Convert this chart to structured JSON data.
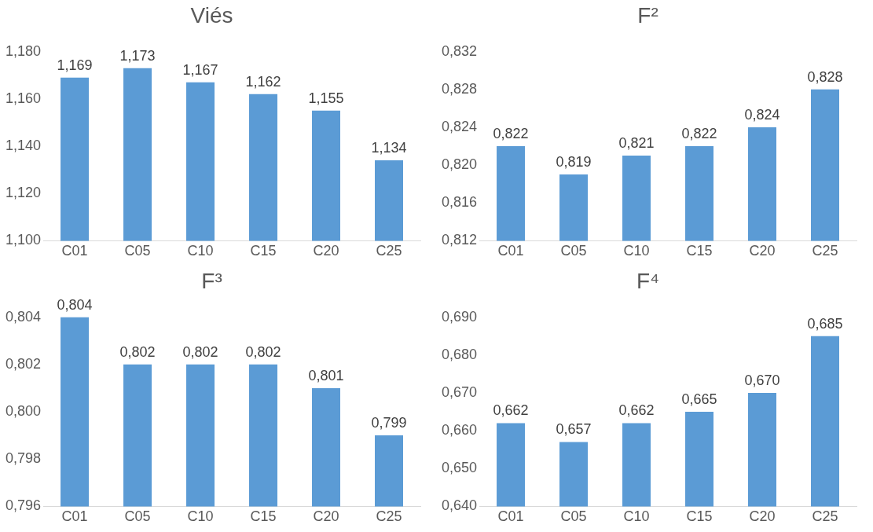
{
  "chart_data": [
    {
      "type": "bar",
      "title": "Viés",
      "categories": [
        "C01",
        "C05",
        "C10",
        "C15",
        "C20",
        "C25"
      ],
      "values": [
        1.169,
        1.173,
        1.167,
        1.162,
        1.155,
        1.134
      ],
      "color": "#5b9bd5",
      "value_labels": [
        "1,169",
        "1,173",
        "1,167",
        "1,162",
        "1,155",
        "1,134"
      ],
      "ylim": [
        1.1,
        1.18
      ],
      "yticks": [
        {
          "value": 1.1,
          "label": "1,100"
        },
        {
          "value": 1.12,
          "label": "1,120"
        },
        {
          "value": 1.14,
          "label": "1,140"
        },
        {
          "value": 1.16,
          "label": "1,160"
        },
        {
          "value": 1.18,
          "label": "1,180"
        }
      ],
      "grid": false
    },
    {
      "type": "bar",
      "title": "F²",
      "categories": [
        "C01",
        "C05",
        "C10",
        "C15",
        "C20",
        "C25"
      ],
      "values": [
        0.822,
        0.819,
        0.821,
        0.822,
        0.824,
        0.828
      ],
      "color": "#5b9bd5",
      "value_labels": [
        "0,822",
        "0,819",
        "0,821",
        "0,822",
        "0,824",
        "0,828"
      ],
      "ylim": [
        0.812,
        0.832
      ],
      "yticks": [
        {
          "value": 0.812,
          "label": "0,812"
        },
        {
          "value": 0.816,
          "label": "0,816"
        },
        {
          "value": 0.82,
          "label": "0,820"
        },
        {
          "value": 0.824,
          "label": "0,824"
        },
        {
          "value": 0.828,
          "label": "0,828"
        },
        {
          "value": 0.832,
          "label": "0,832"
        }
      ],
      "grid": false
    },
    {
      "type": "bar",
      "title": "F³",
      "categories": [
        "C01",
        "C05",
        "C10",
        "C15",
        "C20",
        "C25"
      ],
      "values": [
        0.804,
        0.802,
        0.802,
        0.802,
        0.801,
        0.799
      ],
      "color": "#5b9bd5",
      "value_labels": [
        "0,804",
        "0,802",
        "0,802",
        "0,802",
        "0,801",
        "0,799"
      ],
      "ylim": [
        0.796,
        0.804
      ],
      "yticks": [
        {
          "value": 0.796,
          "label": "0,796"
        },
        {
          "value": 0.798,
          "label": "0,798"
        },
        {
          "value": 0.8,
          "label": "0,800"
        },
        {
          "value": 0.802,
          "label": "0,802"
        },
        {
          "value": 0.804,
          "label": "0,804"
        }
      ],
      "grid": false
    },
    {
      "type": "bar",
      "title": "F⁴",
      "categories": [
        "C01",
        "C05",
        "C10",
        "C15",
        "C20",
        "C25"
      ],
      "values": [
        0.662,
        0.657,
        0.662,
        0.665,
        0.67,
        0.685
      ],
      "color": "#5b9bd5",
      "value_labels": [
        "0,662",
        "0,657",
        "0,662",
        "0,665",
        "0,670",
        "0,685"
      ],
      "ylim": [
        0.64,
        0.69
      ],
      "yticks": [
        {
          "value": 0.64,
          "label": "0,640"
        },
        {
          "value": 0.65,
          "label": "0,650"
        },
        {
          "value": 0.66,
          "label": "0,660"
        },
        {
          "value": 0.67,
          "label": "0,670"
        },
        {
          "value": 0.68,
          "label": "0,680"
        },
        {
          "value": 0.69,
          "label": "0,690"
        }
      ],
      "grid": false
    }
  ]
}
